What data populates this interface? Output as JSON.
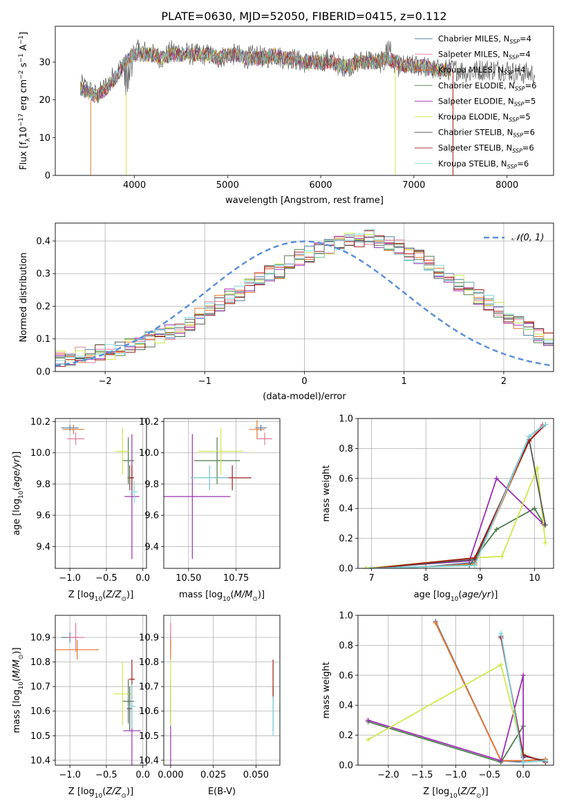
{
  "figure_title": "PLATE=0630, MJD=52050, FIBERID=0415, z=0.112",
  "colors": {
    "chabrier_miles": "#4f7fa6",
    "salpeter_miles": "#e07a9a",
    "kroupa_miles": "#e8742a",
    "chabrier_elodie": "#4d7a4d",
    "salpeter_elodie": "#9a2fb0",
    "kroupa_elodie": "#cde84a",
    "chabrier_stelib": "#555555",
    "salpeter_stelib": "#a11a1a",
    "kroupa_stelib": "#7fd6dd",
    "normal_curve": "#5b8fd6",
    "grid": "#b0b0b0"
  },
  "chart_data": [
    {
      "id": "spectrum",
      "type": "line",
      "xlabel": "wavelength [Angstrom, rest frame]",
      "ylabel": "Flux [f_λ10^-17 erg cm^-2 s^-1 A^-1]",
      "xlim": [
        3150,
        8500
      ],
      "ylim": [
        0,
        39.5
      ],
      "xticks": [
        "4000",
        "5000",
        "6000",
        "7000",
        "8000"
      ],
      "yticks": [
        "0",
        "10",
        "20",
        "30"
      ],
      "grid": false,
      "legend_position": "top-right",
      "legend": [
        {
          "key": "chabrier_miles",
          "label": "Chabrier MILES, N",
          "sub": "SSP",
          "suffix": "=4"
        },
        {
          "key": "salpeter_miles",
          "label": "Salpeter MILES, N",
          "sub": "SSP",
          "suffix": "=4"
        },
        {
          "key": "kroupa_miles",
          "label": "Kroupa MILES, N",
          "sub": "SSP",
          "suffix": "=4"
        },
        {
          "key": "chabrier_elodie",
          "label": "Chabrier ELODIE, N",
          "sub": "SSP",
          "suffix": "=6"
        },
        {
          "key": "salpeter_elodie",
          "label": "Salpeter ELODIE, N",
          "sub": "SSP",
          "suffix": "=5"
        },
        {
          "key": "kroupa_elodie",
          "label": "Kroupa ELODIE, N",
          "sub": "SSP",
          "suffix": "=5"
        },
        {
          "key": "chabrier_stelib",
          "label": "Chabrier STELIB, N",
          "sub": "SSP",
          "suffix": "=6"
        },
        {
          "key": "salpeter_stelib",
          "label": "Salpeter STELIB, N",
          "sub": "SSP",
          "suffix": "=6"
        },
        {
          "key": "kroupa_stelib",
          "label": "Kroupa STELIB, N",
          "sub": "SSP",
          "suffix": "=6"
        }
      ],
      "data_spectrum": {
        "wavelength": [
          3420,
          3500,
          3600,
          3700,
          3800,
          3900,
          4000,
          4100,
          4200,
          4300,
          4400,
          4500,
          4600,
          4700,
          4800,
          4900,
          5000,
          5100,
          5200,
          5300,
          5400,
          5500,
          5600,
          5700,
          5800,
          5900,
          6000,
          6100,
          6200,
          6300,
          6400,
          6500,
          6600,
          6700,
          6800,
          6900,
          7000,
          7100,
          7200,
          7300,
          7400,
          7500,
          7600,
          7700,
          7800,
          7900,
          8000,
          8100,
          8200,
          8300
        ],
        "flux": [
          24,
          23,
          21,
          24,
          27,
          30,
          33,
          33,
          32,
          31,
          33,
          33,
          32,
          32,
          32,
          31,
          32,
          32,
          31,
          32,
          31,
          32,
          31,
          31,
          30,
          30,
          30,
          31,
          29,
          29,
          30,
          31,
          30,
          30,
          29,
          29,
          29,
          29,
          28,
          28,
          28,
          28,
          27,
          28,
          28,
          28,
          28,
          27,
          27,
          27
        ]
      },
      "model_spectrum": {
        "wavelength": [
          3420,
          3500,
          3600,
          3700,
          3800,
          3900,
          4000,
          4100,
          4200,
          4300,
          4400,
          4500,
          4600,
          4700,
          4800,
          4900,
          5000,
          5100,
          5200,
          5300,
          5400,
          5500,
          5600,
          5700,
          5800,
          5900,
          6000,
          6100,
          6200,
          6300,
          6400,
          6500,
          6600,
          6700,
          6800,
          6900,
          7000,
          7100,
          7200,
          7300,
          7400
        ],
        "flux": [
          23,
          22,
          21,
          23,
          26,
          30,
          32,
          32,
          32,
          31,
          32,
          32,
          32,
          32,
          32,
          31,
          32,
          32,
          31,
          31,
          31,
          32,
          31,
          31,
          30,
          30,
          30,
          30,
          29,
          29,
          30,
          30,
          30,
          31,
          30,
          29,
          29,
          29,
          28,
          28,
          28
        ]
      }
    },
    {
      "id": "residuals",
      "type": "histogram",
      "xlabel": "(data-model)/error",
      "ylabel": "Normed distribution",
      "xlim": [
        -2.5,
        2.5
      ],
      "ylim": [
        0,
        0.455
      ],
      "xticks": [
        -2,
        -1,
        0,
        1,
        2
      ],
      "yticks": [
        0.0,
        0.1,
        0.2,
        0.3,
        0.4
      ],
      "grid": true,
      "legend_position": "top-right",
      "legend_curve": "𝒩(0, 1)",
      "bin_width": 0.1,
      "reference_counts": [
        0.04,
        0.04,
        0.05,
        0.05,
        0.06,
        0.06,
        0.07,
        0.08,
        0.09,
        0.1,
        0.11,
        0.12,
        0.13,
        0.15,
        0.17,
        0.19,
        0.21,
        0.23,
        0.24,
        0.26,
        0.28,
        0.3,
        0.31,
        0.33,
        0.35,
        0.36,
        0.37,
        0.38,
        0.39,
        0.4,
        0.4,
        0.41,
        0.4,
        0.39,
        0.38,
        0.36,
        0.35,
        0.33,
        0.31,
        0.29,
        0.27,
        0.25,
        0.23,
        0.21,
        0.19,
        0.17,
        0.15,
        0.13,
        0.11,
        0.1
      ],
      "normal_curve": "N(0,1)"
    },
    {
      "id": "age_vs_Z",
      "type": "errorbar",
      "xlabel": "Z [log10(Z/Z⊙)]",
      "ylabel": "age [log10(age/yr)]",
      "xlim": [
        -1.2,
        0.05
      ],
      "ylim": [
        9.26,
        10.22
      ],
      "xticks": [
        -1.0,
        -0.5,
        0.0
      ],
      "yticks": [
        9.4,
        9.6,
        9.8,
        10.0,
        10.2
      ],
      "grid": true,
      "points": [
        {
          "key": "chabrier_miles",
          "x": -1.0,
          "xerr": 0.12,
          "y": 10.16,
          "yerr": 0.02
        },
        {
          "key": "salpeter_miles",
          "x": -0.92,
          "xerr": 0.12,
          "y": 10.09,
          "yerr": 0.04
        },
        {
          "key": "kroupa_miles",
          "x": -0.95,
          "xerr": 0.15,
          "y": 10.15,
          "yerr": 0.03
        },
        {
          "key": "chabrier_elodie",
          "x": -0.2,
          "xerr": 0.08,
          "y": 9.95,
          "yerr": 0.15
        },
        {
          "key": "salpeter_elodie",
          "x": -0.15,
          "xerr": 0.1,
          "y": 9.72,
          "yerr": 0.4
        },
        {
          "key": "kroupa_elodie",
          "x": -0.28,
          "xerr": 0.1,
          "y": 10.01,
          "yerr": 0.15
        },
        {
          "key": "chabrier_stelib",
          "x": -0.18,
          "xerr": 0.03,
          "y": 9.84,
          "yerr": 0.08
        },
        {
          "key": "salpeter_stelib",
          "x": -0.15,
          "xerr": 0.03,
          "y": 9.84,
          "yerr": 0.08
        },
        {
          "key": "kroupa_stelib",
          "x": -0.12,
          "xerr": 0.05,
          "y": 9.75,
          "yerr": 0.07
        }
      ]
    },
    {
      "id": "age_vs_mass",
      "type": "errorbar",
      "xlabel": "mass [log10(M/M⊙)]",
      "ylabel": "",
      "xlim": [
        10.37,
        10.98
      ],
      "ylim": [
        9.26,
        10.22
      ],
      "xticks": [
        10.5,
        10.75
      ],
      "yticks": [
        9.4,
        9.6,
        9.8,
        10.0,
        10.2
      ],
      "grid": true,
      "points": [
        {
          "key": "chabrier_miles",
          "x": 10.88,
          "xerr": 0.03,
          "y": 10.16,
          "yerr": 0.02
        },
        {
          "key": "salpeter_miles",
          "x": 10.9,
          "xerr": 0.04,
          "y": 10.09,
          "yerr": 0.04
        },
        {
          "key": "kroupa_miles",
          "x": 10.86,
          "xerr": 0.04,
          "y": 10.15,
          "yerr": 0.06
        },
        {
          "key": "chabrier_elodie",
          "x": 10.65,
          "xerr": 0.12,
          "y": 9.95,
          "yerr": 0.15
        },
        {
          "key": "salpeter_elodie",
          "x": 10.52,
          "xerr": 0.2,
          "y": 9.72,
          "yerr": 0.4
        },
        {
          "key": "kroupa_elodie",
          "x": 10.67,
          "xerr": 0.12,
          "y": 10.01,
          "yerr": 0.15
        },
        {
          "key": "chabrier_stelib",
          "x": 10.61,
          "xerr": 0.1,
          "y": 9.84,
          "yerr": 0.08
        },
        {
          "key": "salpeter_stelib",
          "x": 10.73,
          "xerr": 0.1,
          "y": 9.84,
          "yerr": 0.08
        },
        {
          "key": "kroupa_stelib",
          "x": 10.61,
          "xerr": 0.1,
          "y": 9.84,
          "yerr": 0.08
        }
      ]
    },
    {
      "id": "weight_vs_age",
      "type": "line",
      "xlabel": "age (log10(age/yr))",
      "ylabel": "mass weight",
      "xlim": [
        6.75,
        10.35
      ],
      "ylim": [
        0,
        1.0
      ],
      "xticks": [
        7,
        8,
        9,
        10
      ],
      "yticks": [
        0.0,
        0.2,
        0.4,
        0.6,
        0.8,
        1.0
      ],
      "grid": true,
      "series": [
        {
          "key": "chabrier_miles",
          "x": [
            7.0,
            8.0,
            8.9,
            9.9,
            10.15
          ],
          "y": [
            0.0,
            0.01,
            0.04,
            0.88,
            0.95
          ]
        },
        {
          "key": "salpeter_miles",
          "x": [
            7.0,
            8.0,
            8.9,
            9.9,
            10.15
          ],
          "y": [
            0.0,
            0.01,
            0.03,
            0.85,
            0.96
          ]
        },
        {
          "key": "kroupa_miles",
          "x": [
            7.0,
            8.0,
            8.9,
            9.9,
            10.2
          ],
          "y": [
            0.0,
            0.01,
            0.03,
            0.85,
            0.96
          ]
        },
        {
          "key": "chabrier_elodie",
          "x": [
            6.9,
            8.8,
            9.3,
            10.0,
            10.18
          ],
          "y": [
            0.0,
            0.02,
            0.26,
            0.4,
            0.29
          ]
        },
        {
          "key": "salpeter_elodie",
          "x": [
            6.9,
            8.8,
            9.3,
            10.15
          ],
          "y": [
            0.0,
            0.05,
            0.6,
            0.3
          ]
        },
        {
          "key": "kroupa_elodie",
          "x": [
            6.9,
            8.9,
            9.4,
            10.05,
            10.2
          ],
          "y": [
            0.0,
            0.07,
            0.08,
            0.67,
            0.17
          ]
        },
        {
          "key": "chabrier_stelib",
          "x": [
            7.0,
            8.9,
            9.9,
            10.2
          ],
          "y": [
            0.0,
            0.06,
            0.86,
            0.29
          ]
        },
        {
          "key": "salpeter_stelib",
          "x": [
            7.0,
            8.9,
            9.9,
            10.2
          ],
          "y": [
            0.0,
            0.07,
            0.85,
            0.96
          ]
        },
        {
          "key": "kroupa_stelib",
          "x": [
            7.0,
            8.9,
            9.9,
            10.2
          ],
          "y": [
            0.0,
            0.02,
            0.88,
            0.96
          ]
        }
      ]
    },
    {
      "id": "mass_vs_Z",
      "type": "errorbar",
      "xlabel": "Z [log10(Z/Z⊙)]",
      "ylabel": "mass [log10(M/M⊙)]",
      "xlim": [
        -1.2,
        0.05
      ],
      "ylim": [
        10.38,
        10.99
      ],
      "xticks": [
        -1.0,
        -0.5,
        0.0
      ],
      "yticks": [
        10.4,
        10.5,
        10.6,
        10.7,
        10.8,
        10.9
      ],
      "grid": true,
      "points": [
        {
          "key": "chabrier_miles",
          "x": -1.0,
          "xerr": 0.12,
          "y": 10.9,
          "yerr": 0.02
        },
        {
          "key": "salpeter_miles",
          "x": -0.92,
          "xerr": 0.12,
          "y": 10.9,
          "yerr": 0.06
        },
        {
          "key": "kroupa_miles",
          "x": -0.9,
          "xerr": 0.3,
          "y": 10.85,
          "yerr": 0.04
        },
        {
          "key": "chabrier_elodie",
          "x": -0.2,
          "xerr": 0.08,
          "y": 10.64,
          "yerr": 0.09
        },
        {
          "key": "salpeter_elodie",
          "x": -0.15,
          "xerr": 0.12,
          "y": 10.52,
          "yerr": 0.14
        },
        {
          "key": "kroupa_elodie",
          "x": -0.28,
          "xerr": 0.12,
          "y": 10.67,
          "yerr": 0.13
        },
        {
          "key": "chabrier_stelib",
          "x": -0.18,
          "xerr": 0.04,
          "y": 10.61,
          "yerr": 0.09
        },
        {
          "key": "salpeter_stelib",
          "x": -0.15,
          "xerr": 0.04,
          "y": 10.73,
          "yerr": 0.08
        },
        {
          "key": "kroupa_stelib",
          "x": -0.15,
          "xerr": 0.05,
          "y": 10.62,
          "yerr": 0.09
        }
      ]
    },
    {
      "id": "mass_vs_ebv",
      "type": "errorbar",
      "xlabel": "E(B-V)",
      "ylabel": "",
      "xlim": [
        -0.004,
        0.064
      ],
      "ylim": [
        10.38,
        10.99
      ],
      "xticks": [
        0.0,
        0.025,
        0.05
      ],
      "yticks": [
        10.4,
        10.5,
        10.6,
        10.7,
        10.8,
        10.9
      ],
      "grid": true,
      "points": [
        {
          "key": "chabrier_miles",
          "x": 0.0,
          "xerr": 0,
          "y": 10.9,
          "yerr": 0.02
        },
        {
          "key": "salpeter_miles",
          "x": 0.0,
          "xerr": 0,
          "y": 10.9,
          "yerr": 0.06
        },
        {
          "key": "kroupa_miles",
          "x": 0.0,
          "xerr": 0,
          "y": 10.85,
          "yerr": 0.04
        },
        {
          "key": "chabrier_elodie",
          "x": 0.0,
          "xerr": 0,
          "y": 10.64,
          "yerr": 0.09
        },
        {
          "key": "salpeter_elodie",
          "x": 0.0,
          "xerr": 0,
          "y": 10.52,
          "yerr": 0.14
        },
        {
          "key": "kroupa_elodie",
          "x": 0.0,
          "xerr": 0,
          "y": 10.67,
          "yerr": 0.13
        },
        {
          "key": "chabrier_stelib",
          "x": 0.06,
          "xerr": 0,
          "y": 10.61,
          "yerr": 0.09
        },
        {
          "key": "salpeter_stelib",
          "x": 0.06,
          "xerr": 0,
          "y": 10.73,
          "yerr": 0.08
        },
        {
          "key": "kroupa_stelib",
          "x": 0.06,
          "xerr": 0,
          "y": 10.58,
          "yerr": 0.08
        }
      ]
    },
    {
      "id": "weight_vs_Z",
      "type": "line",
      "xlabel": "Z [log10(Z/Z⊙)]",
      "ylabel": "mass weight",
      "xlim": [
        -2.45,
        0.45
      ],
      "ylim": [
        0,
        1.0
      ],
      "xticks": [
        -2.0,
        -1.5,
        -1.0,
        -0.5,
        0.0
      ],
      "yticks": [
        0.0,
        0.2,
        0.4,
        0.6,
        0.8,
        1.0
      ],
      "grid": true,
      "series": [
        {
          "key": "chabrier_miles",
          "x": [
            -1.3,
            -0.33,
            0.0,
            0.33
          ],
          "y": [
            0.96,
            0.03,
            0.02,
            0.03
          ]
        },
        {
          "key": "salpeter_miles",
          "x": [
            -1.3,
            -0.33,
            0.0,
            0.33
          ],
          "y": [
            0.95,
            0.03,
            0.03,
            0.04
          ]
        },
        {
          "key": "kroupa_miles",
          "x": [
            -1.3,
            -0.33,
            0.0,
            0.33
          ],
          "y": [
            0.95,
            0.03,
            0.03,
            0.04
          ]
        },
        {
          "key": "chabrier_elodie",
          "x": [
            -2.3,
            -0.33,
            0.0
          ],
          "y": [
            0.29,
            0.02,
            0.26
          ]
        },
        {
          "key": "salpeter_elodie",
          "x": [
            -2.3,
            -0.33,
            0.0,
            0.0
          ],
          "y": [
            0.3,
            0.03,
            0.6,
            0.05
          ]
        },
        {
          "key": "kroupa_elodie",
          "x": [
            -2.3,
            -0.33,
            0.0
          ],
          "y": [
            0.17,
            0.67,
            0.08
          ]
        },
        {
          "key": "chabrier_stelib",
          "x": [
            -0.33,
            0.0,
            0.33
          ],
          "y": [
            0.86,
            0.06,
            0.03
          ]
        },
        {
          "key": "salpeter_stelib",
          "x": [
            -0.33,
            0.0,
            0.33
          ],
          "y": [
            0.85,
            0.07,
            0.02
          ]
        },
        {
          "key": "kroupa_stelib",
          "x": [
            -0.33,
            0.0,
            0.33
          ],
          "y": [
            0.88,
            0.02,
            0.03
          ]
        }
      ]
    }
  ]
}
